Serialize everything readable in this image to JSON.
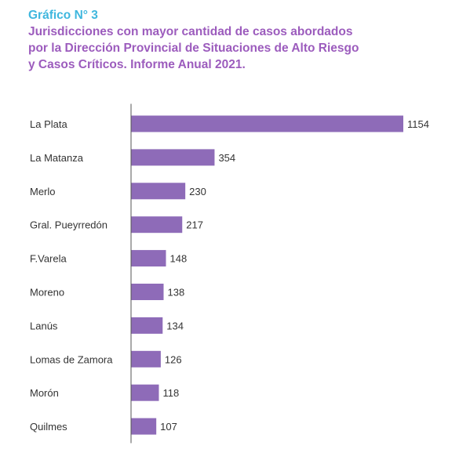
{
  "figure": {
    "number": "Gráfico N° 3",
    "title_lines": [
      "Jurisdicciones con mayor cantidad de casos abordados",
      "por la Dirección Provincial de Situaciones de Alto Riesgo",
      "y Casos Críticos. Informe Anual 2021."
    ]
  },
  "colors": {
    "figure_number": "#3fb7de",
    "title": "#9c5cbd",
    "bar": "#8e6bb8",
    "axis": "#555555",
    "text": "#333333"
  },
  "chart_data": {
    "type": "bar",
    "orientation": "horizontal",
    "title": "Jurisdicciones con mayor cantidad de casos abordados por la Dirección Provincial de Situaciones de Alto Riesgo y Casos Críticos. Informe Anual 2021.",
    "categories": [
      "La Plata",
      "La Matanza",
      "Merlo",
      "Gral. Pueyrredón",
      "F.Varela",
      "Moreno",
      "Lanús",
      "Lomas de Zamora",
      "Morón",
      "Quilmes"
    ],
    "values": [
      1154,
      354,
      230,
      217,
      148,
      138,
      134,
      126,
      118,
      107
    ],
    "xlim": [
      0,
      1154
    ],
    "xlabel": "",
    "ylabel": "",
    "grid": false,
    "legend": "none",
    "data_labels": true
  }
}
